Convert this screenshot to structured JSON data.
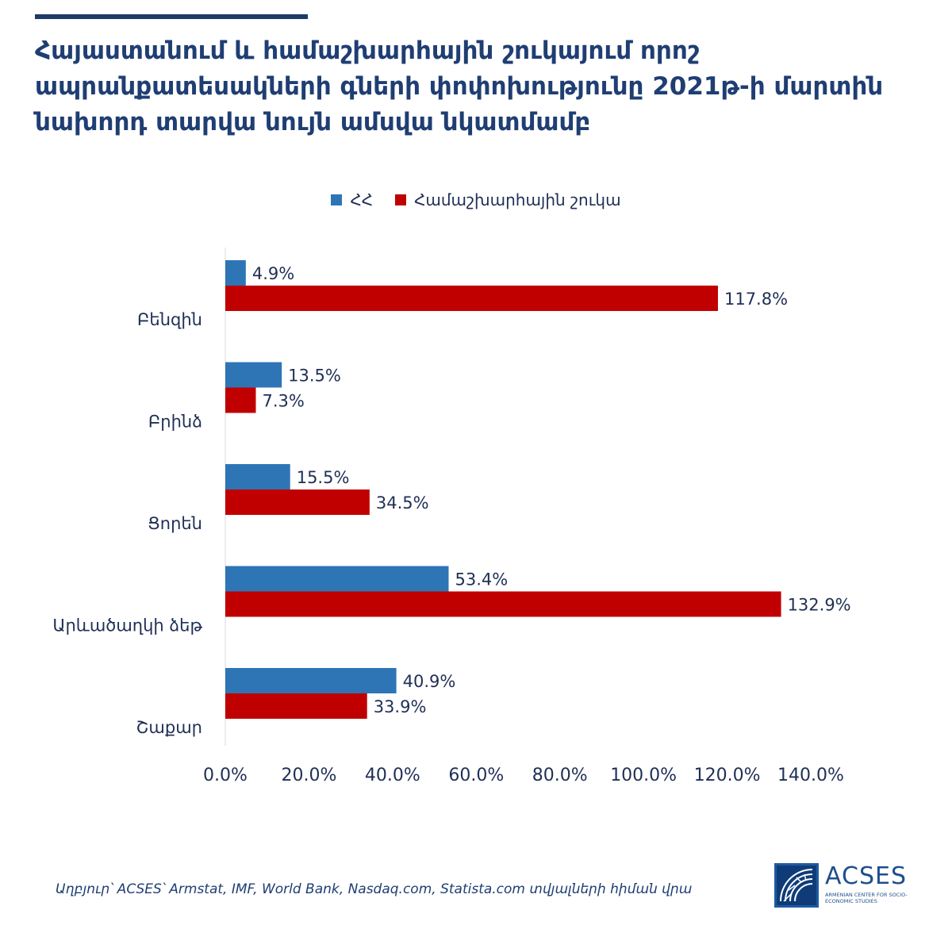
{
  "header": {
    "title": "Հայաստանում և համաշխարհային շուկայում որոշ ապրանքատեսակների գների փոփոխությունը 2021թ-ի մարտին նախորդ տարվա նույն ամսվա նկատմամբ"
  },
  "colors": {
    "title": "#1f3e73",
    "armenia": "#2e75b6",
    "world": "#c00000",
    "axis_text": "#1f2f55"
  },
  "chart_data": {
    "type": "bar",
    "orientation": "horizontal",
    "categories": [
      "Բենզին",
      "Բրինձ",
      "Ցորեն",
      "Արևածաղկի ձեթ",
      "Շաքար"
    ],
    "series": [
      {
        "name": "ՀՀ",
        "color": "#2e75b6",
        "values": [
          4.9,
          13.5,
          15.5,
          53.4,
          40.9
        ],
        "labels": [
          "4.9%",
          "13.5%",
          "15.5%",
          "53.4%",
          "40.9%"
        ]
      },
      {
        "name": "Համաշխարհային շուկա",
        "color": "#c00000",
        "values": [
          117.8,
          7.3,
          34.5,
          132.9,
          33.9
        ],
        "labels": [
          "117.8%",
          "7.3%",
          "34.5%",
          "132.9%",
          "33.9%"
        ]
      }
    ],
    "xlim": [
      0,
      140
    ],
    "ticks": [
      "0.0%",
      "20.0%",
      "40.0%",
      "60.0%",
      "80.0%",
      "100.0%",
      "120.0%",
      "140.0%"
    ],
    "legend": "top",
    "grid": false
  },
  "footer": {
    "source": "Աղբյուր՝ ACSES՝ Armstat, IMF, World Bank, Nasdaq.com, Statista.com տվյալների հիման վրա",
    "logo_name": "ACSES",
    "logo_subtitle": "ARMENIAN CENTER FOR SOCIO-ECONOMIC STUDIES"
  }
}
